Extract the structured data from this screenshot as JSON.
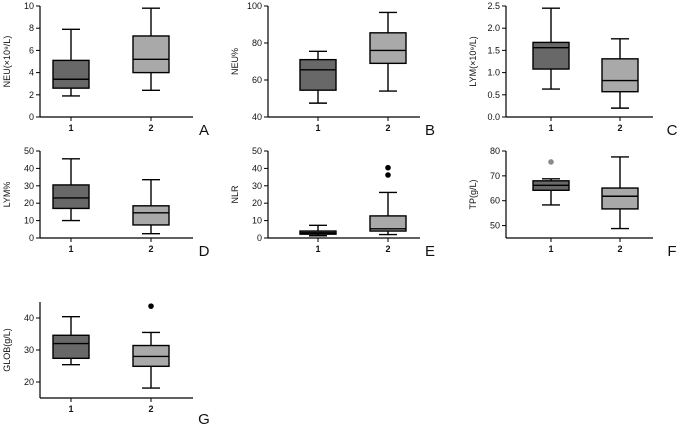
{
  "chart_data": [
    {
      "type": "box",
      "panel": "A",
      "ylabel": "NEU(×10⁹/L)",
      "ylim": [
        0,
        10
      ],
      "yticks": [
        "0",
        "2",
        "4",
        "6",
        "8",
        "10"
      ],
      "categories": [
        "1",
        "2"
      ],
      "boxes": [
        {
          "min": 1.9,
          "q1": 2.6,
          "median": 3.4,
          "q3": 5.1,
          "max": 7.9,
          "outliers": []
        },
        {
          "min": 2.4,
          "q1": 4.0,
          "median": 5.2,
          "q3": 7.3,
          "max": 9.8,
          "outliers": []
        }
      ]
    },
    {
      "type": "box",
      "panel": "B",
      "ylabel": "NEU%",
      "ylim": [
        40,
        100
      ],
      "yticks": [
        "40",
        "60",
        "80",
        "100"
      ],
      "categories": [
        "1",
        "2"
      ],
      "boxes": [
        {
          "min": 47.5,
          "q1": 54.5,
          "median": 65.5,
          "q3": 71.0,
          "max": 75.5,
          "outliers": []
        },
        {
          "min": 54.0,
          "q1": 69.0,
          "median": 76.0,
          "q3": 85.5,
          "max": 96.5,
          "outliers": []
        }
      ]
    },
    {
      "type": "box",
      "panel": "C",
      "ylabel": "LYM(×10⁹/L)",
      "ylim": [
        0,
        2.5
      ],
      "yticks": [
        "0.0",
        "0.5",
        "1.0",
        "1.5",
        "2.0",
        "2.5"
      ],
      "categories": [
        "1",
        "2"
      ],
      "boxes": [
        {
          "min": 0.63,
          "q1": 1.08,
          "median": 1.56,
          "q3": 1.68,
          "max": 2.45,
          "outliers": []
        },
        {
          "min": 0.2,
          "q1": 0.57,
          "median": 0.82,
          "q3": 1.31,
          "max": 1.76,
          "outliers": []
        }
      ]
    },
    {
      "type": "box",
      "panel": "D",
      "ylabel": "LYM%",
      "ylim": [
        0,
        50
      ],
      "yticks": [
        "0",
        "10",
        "20",
        "30",
        "40",
        "50"
      ],
      "categories": [
        "1",
        "2"
      ],
      "boxes": [
        {
          "min": 10.0,
          "q1": 17.0,
          "median": 23.0,
          "q3": 30.5,
          "max": 45.5,
          "outliers": []
        },
        {
          "min": 2.5,
          "q1": 7.5,
          "median": 14.5,
          "q3": 18.5,
          "max": 33.5,
          "outliers": []
        }
      ]
    },
    {
      "type": "box",
      "panel": "E",
      "ylabel": "NLR",
      "ylim": [
        0,
        50
      ],
      "yticks": [
        "0",
        "10",
        "20",
        "30",
        "40",
        "50"
      ],
      "categories": [
        "1",
        "2"
      ],
      "boxes": [
        {
          "min": 1.3,
          "q1": 2.2,
          "median": 3.0,
          "q3": 4.0,
          "max": 7.3,
          "outliers": []
        },
        {
          "min": 2.0,
          "q1": 4.0,
          "median": 5.3,
          "q3": 12.7,
          "max": 26.2,
          "outliers": [
            36.2,
            40.4
          ]
        }
      ]
    },
    {
      "type": "box",
      "panel": "F",
      "ylabel": "TP(g/L)",
      "ylim": [
        45,
        80
      ],
      "yticks": [
        "50",
        "60",
        "70",
        "80"
      ],
      "categories": [
        "1",
        "2"
      ],
      "boxes": [
        {
          "min": 58.3,
          "q1": 64.2,
          "median": 66.2,
          "q3": 68.0,
          "max": 68.8,
          "outliers": [
            75.6
          ]
        },
        {
          "min": 48.8,
          "q1": 56.7,
          "median": 61.8,
          "q3": 65.1,
          "max": 77.6,
          "outliers": []
        }
      ]
    },
    {
      "type": "box",
      "panel": "G",
      "ylabel": "GLOB(g/L)",
      "ylim": [
        15,
        45
      ],
      "yticks": [
        "20",
        "30",
        "40"
      ],
      "categories": [
        "1",
        "2"
      ],
      "boxes": [
        {
          "min": 25.4,
          "q1": 27.4,
          "median": 32.0,
          "q3": 34.6,
          "max": 40.4,
          "outliers": []
        },
        {
          "min": 18.1,
          "q1": 24.9,
          "median": 28.0,
          "q3": 31.4,
          "max": 35.5,
          "outliers": [
            43.7
          ]
        }
      ]
    }
  ],
  "colors": {
    "group1_fill": "#686868",
    "group2_fill": "#a9a9a9",
    "line": "#000000",
    "outlier_dark": "#000000",
    "outlier_gray": "#8a8a8a"
  }
}
